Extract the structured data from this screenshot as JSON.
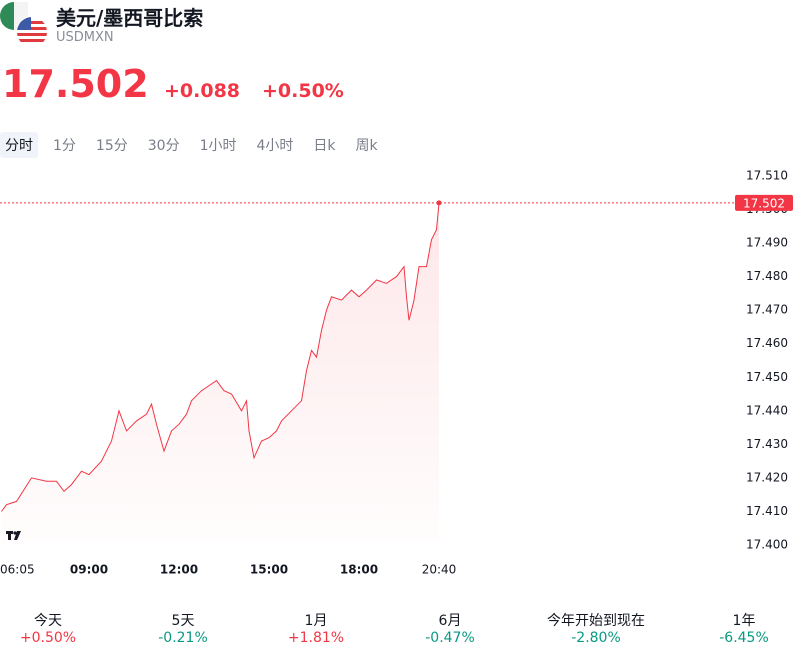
{
  "header": {
    "title": "美元/墨西哥比索",
    "symbol": "USDMXN",
    "price": "17.502",
    "change": "+0.088",
    "change_pct": "+0.50%"
  },
  "tabs": [
    "分时",
    "1分",
    "15分",
    "30分",
    "1小时",
    "4小时",
    "日k",
    "周k"
  ],
  "chart_data": {
    "type": "line",
    "color": "#f23645",
    "x": [
      "06:05",
      "06:15",
      "06:35",
      "07:05",
      "07:35",
      "07:55",
      "08:10",
      "08:25",
      "08:45",
      "09:00",
      "09:25",
      "09:45",
      "10:00",
      "10:15",
      "10:35",
      "10:55",
      "11:05",
      "11:15",
      "11:30",
      "11:45",
      "12:00",
      "12:15",
      "12:25",
      "12:45",
      "13:05",
      "13:15",
      "13:30",
      "13:45",
      "14:05",
      "14:15",
      "14:20",
      "14:30",
      "14:45",
      "15:00",
      "15:15",
      "15:25",
      "15:45",
      "16:05",
      "16:15",
      "16:25",
      "16:35",
      "16:45",
      "16:55",
      "17:05",
      "17:25",
      "17:45",
      "18:00",
      "18:15",
      "18:35",
      "18:55",
      "19:15",
      "19:30",
      "19:35",
      "19:40",
      "19:50",
      "20:00",
      "20:15",
      "20:25",
      "20:35",
      "20:40"
    ],
    "values": [
      17.41,
      17.412,
      17.413,
      17.42,
      17.419,
      17.419,
      17.416,
      17.418,
      17.422,
      17.421,
      17.425,
      17.431,
      17.44,
      17.434,
      17.437,
      17.439,
      17.442,
      17.436,
      17.428,
      17.434,
      17.436,
      17.439,
      17.443,
      17.446,
      17.448,
      17.449,
      17.446,
      17.445,
      17.44,
      17.443,
      17.434,
      17.426,
      17.431,
      17.432,
      17.434,
      17.437,
      17.44,
      17.443,
      17.452,
      17.458,
      17.456,
      17.464,
      17.47,
      17.474,
      17.473,
      17.476,
      17.474,
      17.476,
      17.479,
      17.478,
      17.48,
      17.483,
      17.474,
      17.467,
      17.473,
      17.483,
      17.483,
      17.491,
      17.494,
      17.502
    ],
    "xlim": [
      "06:05",
      "20:40"
    ],
    "xticks": [
      "06:05",
      "09:00",
      "12:00",
      "15:00",
      "18:00",
      "20:40"
    ],
    "ylim": [
      17.4,
      17.51
    ],
    "yticks": [
      {
        "value": 17.4,
        "label": "17.400"
      },
      {
        "value": 17.41,
        "label": "17.410"
      },
      {
        "value": 17.42,
        "label": "17.420"
      },
      {
        "value": 17.43,
        "label": "17.430"
      },
      {
        "value": 17.44,
        "label": "17.440"
      },
      {
        "value": 17.45,
        "label": "17.450"
      },
      {
        "value": 17.46,
        "label": "17.460"
      },
      {
        "value": 17.47,
        "label": "17.470"
      },
      {
        "value": 17.48,
        "label": "17.480"
      },
      {
        "value": 17.49,
        "label": "17.490"
      },
      {
        "value": 17.5,
        "label": "17.500"
      },
      {
        "value": 17.51,
        "label": "17.510"
      }
    ]
  },
  "periods": [
    {
      "label": "今天",
      "change": "+0.50%"
    },
    {
      "label": "5天",
      "change": "-0.21%"
    },
    {
      "label": "1月",
      "change": "+1.81%"
    },
    {
      "label": "6月",
      "change": "-0.47%"
    },
    {
      "label": "今年开始到现在",
      "change": "-2.80%"
    },
    {
      "label": "1年",
      "change": "-6.45%"
    }
  ]
}
